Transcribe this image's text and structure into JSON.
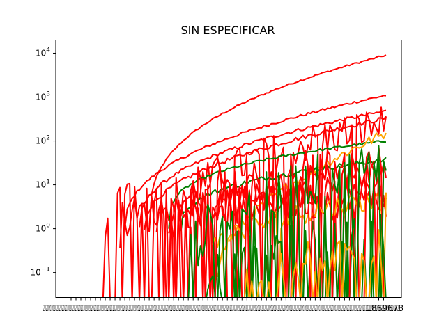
{
  "chart_data": {
    "type": "line",
    "title": "SIN ESPECIFICAR",
    "xlabel": "",
    "ylabel": "",
    "yscale": "log",
    "ylim": [
      0.027,
      20000
    ],
    "yticks": [
      {
        "value": 0.1,
        "base": "10",
        "exp": "−1"
      },
      {
        "value": 1,
        "base": "10",
        "exp": "0"
      },
      {
        "value": 10,
        "base": "10",
        "exp": "1"
      },
      {
        "value": 100,
        "base": "10",
        "exp": "2"
      },
      {
        "value": 1000,
        "base": "10",
        "exp": "3"
      },
      {
        "value": 10000,
        "base": "10",
        "exp": "4"
      }
    ],
    "x_tick_text": "2020-03-...2020-07-28",
    "x_tick_overlap_text": "2020202020202020202020202020202020202020202020202020202020202020202020202020202020202020202020202020202020202020202020202020202020202020202020202020202020202020202020202020202020202020202020202020202020202020202020202020202020202020202020202020202020202020202020202020",
    "x_tick_last": "1869678",
    "x_count": 130,
    "grid": false,
    "legend": "none",
    "colors": {
      "red": "#ff0000",
      "green": "#008000",
      "orange": "#ffa500"
    },
    "series": [
      {
        "color": "#ff0000",
        "start": 32,
        "type": "growth",
        "y0": 1,
        "y1": 9000,
        "shape": 0.35,
        "noise": 0.02
      },
      {
        "color": "#ff0000",
        "start": 22,
        "type": "growth",
        "y0": 1,
        "y1": 1100,
        "shape": 0.42,
        "noise": 0.03
      },
      {
        "color": "#ff0000",
        "start": 28,
        "type": "growth",
        "y0": 1,
        "y1": 480,
        "shape": 0.4,
        "noise": 0.04
      },
      {
        "color": "#ff0000",
        "start": 30,
        "type": "growth",
        "y0": 1,
        "y1": 330,
        "shape": 0.45,
        "noise": 0.05
      },
      {
        "color": "#ff0000",
        "start": 44,
        "type": "noisy",
        "y0": 2,
        "y1": 250,
        "shape": 0.5,
        "noise": 0.45
      },
      {
        "color": "#008000",
        "start": 40,
        "type": "growth",
        "y0": 1,
        "y1": 100,
        "shape": 0.3,
        "noise": 0.03
      },
      {
        "color": "#ffa500",
        "start": 60,
        "type": "growth",
        "y0": 0.1,
        "y1": 150,
        "shape": 0.55,
        "noise": 0.12
      },
      {
        "color": "#008000",
        "start": 45,
        "type": "growth",
        "y0": 1,
        "y1": 37,
        "shape": 0.35,
        "noise": 0.06
      },
      {
        "color": "#ff0000",
        "start": 35,
        "type": "noisy",
        "y0": 1,
        "y1": 20,
        "shape": 0.4,
        "noise": 0.35
      },
      {
        "color": "#ff0000",
        "start": 40,
        "type": "noisy",
        "y0": 1,
        "y1": 8,
        "shape": 0.4,
        "noise": 0.4
      },
      {
        "color": "#ff0000",
        "start": 20,
        "type": "noisy",
        "y0": 1,
        "y1": 5,
        "shape": 0.3,
        "noise": 0.45
      },
      {
        "color": "#ffa500",
        "start": 58,
        "type": "noisy",
        "y0": 0.3,
        "y1": 5,
        "shape": 0.5,
        "noise": 0.25
      },
      {
        "color": "#008000",
        "start": 55,
        "type": "sparse",
        "y0": 0.05,
        "y1": 1,
        "shape": 0.5,
        "noise": 0.5
      },
      {
        "color": "#ff0000",
        "start": 12,
        "type": "sparse",
        "y0": 1,
        "y1": 30,
        "shape": 0.4,
        "noise": 0.5
      },
      {
        "color": "#008000",
        "start": 48,
        "type": "sparse",
        "y0": 0.1,
        "y1": 30,
        "shape": 0.4,
        "noise": 0.6
      },
      {
        "color": "#ffa500",
        "start": 70,
        "type": "sparse",
        "y0": 0.05,
        "y1": 0.4,
        "shape": 0.5,
        "noise": 0.4
      }
    ]
  }
}
